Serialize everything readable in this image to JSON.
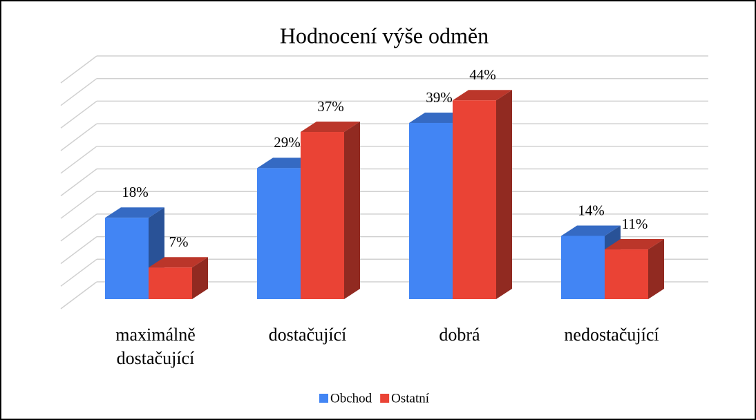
{
  "chart_data": {
    "type": "bar3d",
    "title": "Hodnocení výše odměn",
    "categories": [
      "maximálně dostačující",
      "dostačující",
      "dobrá",
      "nedostačující"
    ],
    "series": [
      {
        "name": "Obchod",
        "color": "#4285f4",
        "values": [
          18,
          29,
          39,
          14
        ],
        "value_labels": [
          "18%",
          "29%",
          "39%",
          "14%"
        ]
      },
      {
        "name": "Ostatní",
        "color": "#ea4335",
        "values": [
          7,
          37,
          44,
          11
        ],
        "value_labels": [
          "7%",
          "37%",
          "44%",
          "11%"
        ]
      }
    ],
    "ylim": [
      0,
      50
    ],
    "yticks": [
      0,
      5,
      10,
      15,
      20,
      25,
      30,
      35,
      40,
      45,
      50
    ],
    "grid": true,
    "legend": "bottom"
  }
}
